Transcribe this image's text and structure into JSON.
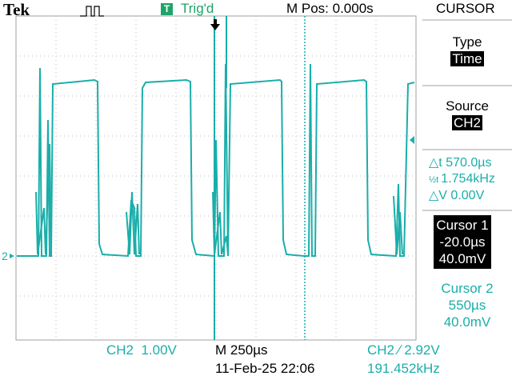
{
  "header": {
    "brand": "Tek",
    "trigger_icon": "T",
    "trigger_status": "Trig'd",
    "m_pos": "M Pos: 0.000s",
    "menu_title": "CURSOR"
  },
  "side_menu": {
    "type_label": "Type",
    "type_value": "Time",
    "source_label": "Source",
    "source_value": "CH2",
    "delta_t": "570.0µs",
    "freq": "1.754kHz",
    "delta_v": "0.00V",
    "cursor1_label": "Cursor 1",
    "cursor1_time": "-20.0µs",
    "cursor1_volt": "40.0mV",
    "cursor2_label": "Cursor 2",
    "cursor2_time": "550µs",
    "cursor2_volt": "40.0mV"
  },
  "footer": {
    "ch_scale": "CH2  1.00V",
    "timebase": "M 250µs",
    "datetime": "11-Feb-25 22:06",
    "trigger_setting": "CH2 ∕ 2.92V",
    "trigger_freq": "191.452kHz"
  },
  "markers": {
    "channel_marker": "2"
  },
  "colors": {
    "trace": "#1aaeaa",
    "grid": "#b8b8b8",
    "trig_badge": "#1fa36a"
  }
}
